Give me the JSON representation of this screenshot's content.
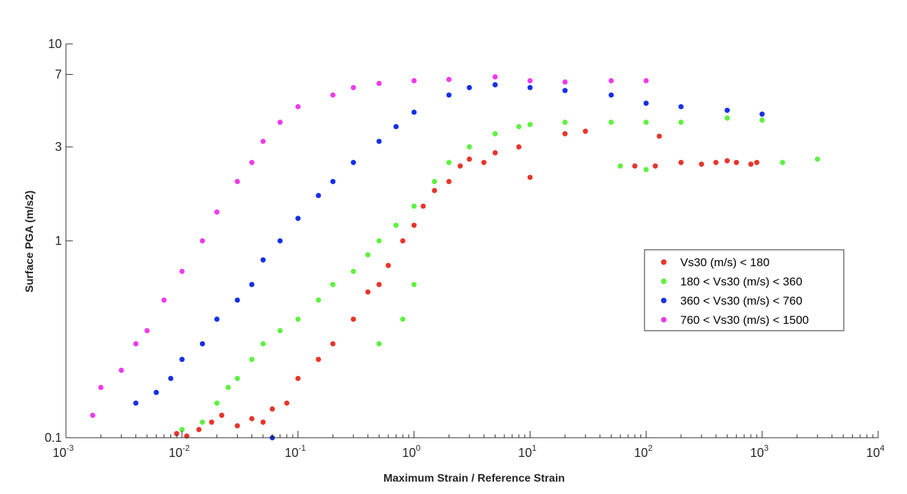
{
  "chart_data": {
    "type": "scatter",
    "title": "",
    "xlabel": "Maximum Strain / Reference Strain",
    "ylabel": "Surface PGA (m/s2)",
    "xscale": "log",
    "yscale": "log",
    "xlim": [
      0.001,
      10000
    ],
    "ylim": [
      0.1,
      10
    ],
    "x_ticks": [
      {
        "base": "10",
        "exp": "-3"
      },
      {
        "base": "10",
        "exp": "-2"
      },
      {
        "base": "10",
        "exp": "-1"
      },
      {
        "base": "10",
        "exp": "0"
      },
      {
        "base": "10",
        "exp": "1"
      },
      {
        "base": "10",
        "exp": "2"
      },
      {
        "base": "10",
        "exp": "3"
      },
      {
        "base": "10",
        "exp": "4"
      }
    ],
    "y_ticks": [
      "0.1",
      "1",
      "3",
      "7",
      "10"
    ],
    "grid": false,
    "legend_position": "right",
    "series": [
      {
        "name": "Vs30 (m/s) < 180",
        "color": "#e8352a",
        "points": [
          [
            0.009,
            0.105
          ],
          [
            0.011,
            0.102
          ],
          [
            0.014,
            0.11
          ],
          [
            0.018,
            0.12
          ],
          [
            0.022,
            0.13
          ],
          [
            0.03,
            0.115
          ],
          [
            0.04,
            0.125
          ],
          [
            0.05,
            0.12
          ],
          [
            0.06,
            0.14
          ],
          [
            0.08,
            0.15
          ],
          [
            0.1,
            0.2
          ],
          [
            0.15,
            0.25
          ],
          [
            0.2,
            0.3
          ],
          [
            0.3,
            0.4
          ],
          [
            0.4,
            0.55
          ],
          [
            0.5,
            0.6
          ],
          [
            0.6,
            0.75
          ],
          [
            0.8,
            1.0
          ],
          [
            1.0,
            1.2
          ],
          [
            1.2,
            1.5
          ],
          [
            1.5,
            1.8
          ],
          [
            2.0,
            2.0
          ],
          [
            2.5,
            2.4
          ],
          [
            3.0,
            2.6
          ],
          [
            4.0,
            2.5
          ],
          [
            5.0,
            2.8
          ],
          [
            8.0,
            3.0
          ],
          [
            10.0,
            2.1
          ],
          [
            20.0,
            3.5
          ],
          [
            30.0,
            3.6
          ],
          [
            80.0,
            2.4
          ],
          [
            120.0,
            2.4
          ],
          [
            130.0,
            3.4
          ],
          [
            200.0,
            2.5
          ],
          [
            300.0,
            2.45
          ],
          [
            400.0,
            2.5
          ],
          [
            500.0,
            2.55
          ],
          [
            600.0,
            2.5
          ],
          [
            800.0,
            2.45
          ],
          [
            900.0,
            2.5
          ]
        ]
      },
      {
        "name": "180 < Vs30 (m/s) < 360",
        "color": "#5cf23f",
        "points": [
          [
            0.01,
            0.11
          ],
          [
            0.015,
            0.12
          ],
          [
            0.02,
            0.15
          ],
          [
            0.025,
            0.18
          ],
          [
            0.03,
            0.2
          ],
          [
            0.04,
            0.25
          ],
          [
            0.05,
            0.3
          ],
          [
            0.07,
            0.35
          ],
          [
            0.1,
            0.4
          ],
          [
            0.15,
            0.5
          ],
          [
            0.2,
            0.6
          ],
          [
            0.3,
            0.7
          ],
          [
            0.4,
            0.85
          ],
          [
            0.5,
            1.0
          ],
          [
            0.7,
            1.2
          ],
          [
            1.0,
            1.5
          ],
          [
            1.5,
            2.0
          ],
          [
            2.0,
            2.5
          ],
          [
            3.0,
            3.0
          ],
          [
            5.0,
            3.5
          ],
          [
            8.0,
            3.8
          ],
          [
            10.0,
            3.9
          ],
          [
            20.0,
            4.0
          ],
          [
            50.0,
            4.0
          ],
          [
            100.0,
            4.0
          ],
          [
            200.0,
            4.0
          ],
          [
            500.0,
            4.2
          ],
          [
            1000.0,
            4.1
          ],
          [
            1500.0,
            2.5
          ],
          [
            3000.0,
            2.6
          ],
          [
            60.0,
            2.4
          ],
          [
            100.0,
            2.3
          ],
          [
            0.5,
            0.3
          ],
          [
            0.8,
            0.4
          ],
          [
            1.0,
            0.6
          ]
        ]
      },
      {
        "name": "360 < Vs30 (m/s) < 760",
        "color": "#1530e8",
        "points": [
          [
            0.004,
            0.15
          ],
          [
            0.006,
            0.17
          ],
          [
            0.008,
            0.2
          ],
          [
            0.01,
            0.25
          ],
          [
            0.015,
            0.3
          ],
          [
            0.02,
            0.4
          ],
          [
            0.03,
            0.5
          ],
          [
            0.04,
            0.6
          ],
          [
            0.05,
            0.8
          ],
          [
            0.07,
            1.0
          ],
          [
            0.1,
            1.3
          ],
          [
            0.15,
            1.7
          ],
          [
            0.2,
            2.0
          ],
          [
            0.3,
            2.5
          ],
          [
            0.5,
            3.2
          ],
          [
            0.7,
            3.8
          ],
          [
            1.0,
            4.5
          ],
          [
            2.0,
            5.5
          ],
          [
            3.0,
            6.0
          ],
          [
            5.0,
            6.2
          ],
          [
            10.0,
            6.0
          ],
          [
            20.0,
            5.8
          ],
          [
            50.0,
            5.5
          ],
          [
            100.0,
            5.0
          ],
          [
            200.0,
            4.8
          ],
          [
            500.0,
            4.6
          ],
          [
            1000.0,
            4.4
          ],
          [
            0.06,
            0.1
          ]
        ]
      },
      {
        "name": "760 < Vs30 (m/s) < 1500",
        "color": "#ed3bed",
        "points": [
          [
            0.0017,
            0.13
          ],
          [
            0.002,
            0.18
          ],
          [
            0.003,
            0.22
          ],
          [
            0.004,
            0.3
          ],
          [
            0.005,
            0.35
          ],
          [
            0.007,
            0.5
          ],
          [
            0.01,
            0.7
          ],
          [
            0.015,
            1.0
          ],
          [
            0.02,
            1.4
          ],
          [
            0.03,
            2.0
          ],
          [
            0.04,
            2.5
          ],
          [
            0.05,
            3.2
          ],
          [
            0.07,
            4.0
          ],
          [
            0.1,
            4.8
          ],
          [
            0.2,
            5.5
          ],
          [
            0.3,
            6.0
          ],
          [
            0.5,
            6.3
          ],
          [
            1.0,
            6.5
          ],
          [
            2.0,
            6.6
          ],
          [
            5.0,
            6.8
          ],
          [
            10.0,
            6.5
          ],
          [
            20.0,
            6.4
          ],
          [
            50.0,
            6.5
          ],
          [
            100.0,
            6.5
          ]
        ]
      }
    ]
  }
}
